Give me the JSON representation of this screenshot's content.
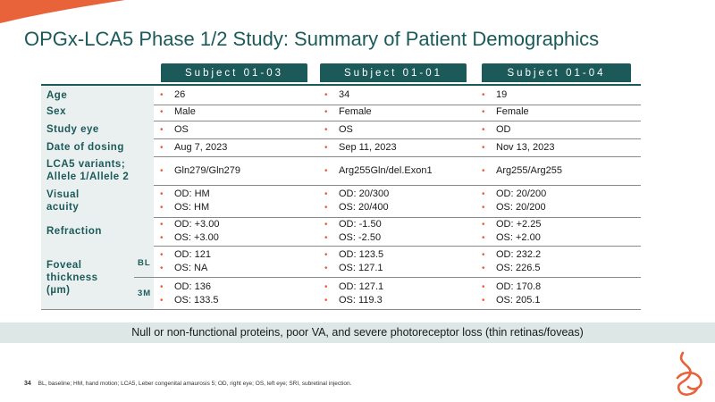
{
  "title": "OPGx-LCA5 Phase 1/2 Study: Summary of Patient Demographics",
  "columns": [
    "Subject 01-03",
    "Subject 01-01",
    "Subject 01-04"
  ],
  "rows": [
    {
      "label": "Age",
      "cells": [
        [
          "26"
        ],
        [
          "34"
        ],
        [
          "19"
        ]
      ]
    },
    {
      "label": "Sex",
      "cells": [
        [
          "Male"
        ],
        [
          "Female"
        ],
        [
          "Female"
        ]
      ]
    },
    {
      "label": "Study eye",
      "cells": [
        [
          "OS"
        ],
        [
          "OS"
        ],
        [
          "OD"
        ]
      ]
    },
    {
      "label": "Date of dosing",
      "cells": [
        [
          "Aug 7, 2023"
        ],
        [
          "Sep 11, 2023"
        ],
        [
          "Nov 13, 2023"
        ]
      ]
    },
    {
      "label_lines": [
        "LCA5 variants;",
        "Allele 1/Allele 2"
      ],
      "cells": [
        [
          "Gln279/Gln279"
        ],
        [
          "Arg255Gln/del.Exon1"
        ],
        [
          "Arg255/Arg255"
        ]
      ]
    },
    {
      "label_lines": [
        "Visual",
        "acuity"
      ],
      "cells": [
        [
          "OD: HM",
          "OS: HM"
        ],
        [
          "OD: 20/300",
          "OS: 20/400"
        ],
        [
          "OD: 20/200",
          "OS: 20/200"
        ]
      ]
    },
    {
      "label": "Refraction",
      "cells": [
        [
          "OD: +3.00",
          "OS: +3.00"
        ],
        [
          "OD: -1.50",
          "OS: -2.50"
        ],
        [
          "OD: +2.25",
          "OS: +2.00"
        ]
      ]
    }
  ],
  "foveal": {
    "label_lines": [
      "Foveal",
      "thickness",
      "(µm)"
    ],
    "bl_label": "BL",
    "bl_cells": [
      [
        "OD: 121",
        "OS: NA"
      ],
      [
        "OD: 123.5",
        "OS: 127.1"
      ],
      [
        "OD: 232.2",
        "OS: 226.5"
      ]
    ],
    "m3_label": "3M",
    "m3_cells": [
      [
        "OD: 136",
        "OS: 133.5"
      ],
      [
        "OD: 127.1",
        "OS: 119.3"
      ],
      [
        "OD: 170.8",
        "OS: 205.1"
      ]
    ]
  },
  "bullet_char": "•",
  "banner": "Null or non-functional proteins, poor VA, and severe photoreceptor loss (thin retinas/foveas)",
  "page_number": "34",
  "footnote": "BL, baseline; HM, hand motion; LCA5, Leber congenital amaurosis 5; OD, right eye; OS, left eye; SRI, subretinal injection.",
  "colors": {
    "teal": "#1c5a5a",
    "orange": "#e8623a",
    "label_bg": "#eaf0ef",
    "banner_bg": "#dce7e6"
  }
}
